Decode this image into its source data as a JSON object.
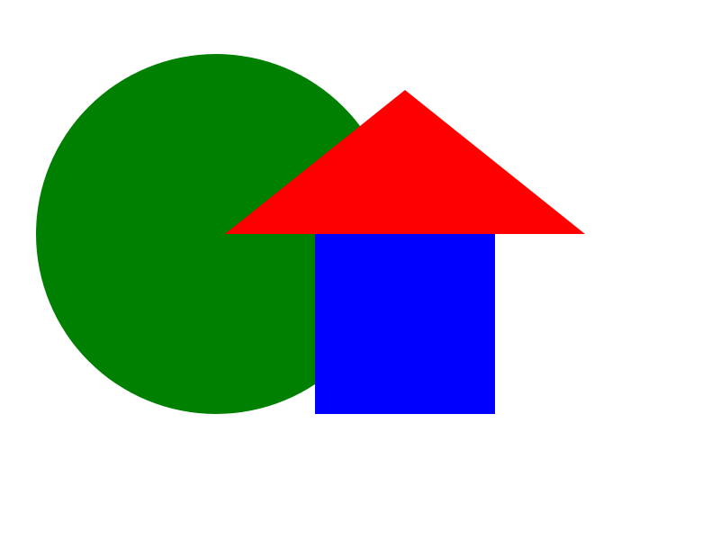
{
  "background": "#ffffff",
  "shapes": {
    "circle": {
      "fill": "#008000"
    },
    "square": {
      "fill": "#0000ff"
    },
    "triangle": {
      "fill": "#ff0000"
    }
  }
}
